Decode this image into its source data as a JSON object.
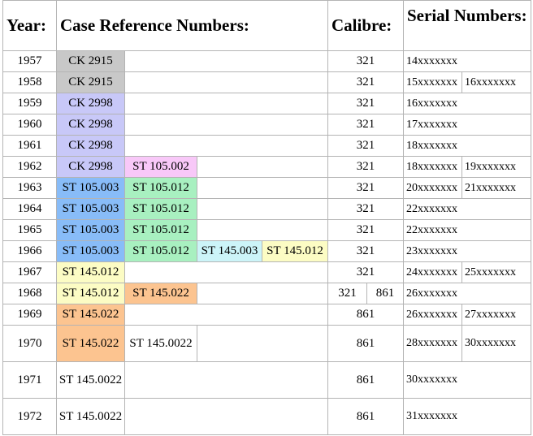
{
  "headers": {
    "year": "Year:",
    "case": "Case Reference Numbers:",
    "calibre": "Calibre:",
    "serial": "Serial Numbers:"
  },
  "rows": [
    {
      "year": "1957",
      "cases": [
        {
          "text": "CK 2915",
          "color": "#c8c8c8"
        }
      ],
      "calibre": [
        "321"
      ],
      "serials": [
        "14xxxxxxx"
      ]
    },
    {
      "year": "1958",
      "cases": [
        {
          "text": "CK 2915",
          "color": "#c8c8c8"
        }
      ],
      "calibre": [
        "321"
      ],
      "serials": [
        "15xxxxxxx",
        "16xxxxxxx"
      ]
    },
    {
      "year": "1959",
      "cases": [
        {
          "text": "CK 2998",
          "color": "#c8c8f8"
        }
      ],
      "calibre": [
        "321"
      ],
      "serials": [
        "16xxxxxxx"
      ]
    },
    {
      "year": "1960",
      "cases": [
        {
          "text": "CK 2998",
          "color": "#c8c8f8"
        }
      ],
      "calibre": [
        "321"
      ],
      "serials": [
        "17xxxxxxx"
      ]
    },
    {
      "year": "1961",
      "cases": [
        {
          "text": "CK 2998",
          "color": "#c8c8f8"
        }
      ],
      "calibre": [
        "321"
      ],
      "serials": [
        "18xxxxxxx"
      ]
    },
    {
      "year": "1962",
      "cases": [
        {
          "text": "CK 2998",
          "color": "#c8c8f8"
        },
        {
          "text": "ST 105.002",
          "color": "#f8c8f8"
        }
      ],
      "calibre": [
        "321"
      ],
      "serials": [
        "18xxxxxxx",
        "19xxxxxxx"
      ]
    },
    {
      "year": "1963",
      "cases": [
        {
          "text": "ST 105.003",
          "color": "#88bcf8"
        },
        {
          "text": "ST 105.012",
          "color": "#a8f0c0"
        }
      ],
      "calibre": [
        "321"
      ],
      "serials": [
        "20xxxxxxx",
        "21xxxxxxx"
      ]
    },
    {
      "year": "1964",
      "cases": [
        {
          "text": "ST 105.003",
          "color": "#88bcf8"
        },
        {
          "text": "ST 105.012",
          "color": "#a8f0c0"
        }
      ],
      "calibre": [
        "321"
      ],
      "serials": [
        "22xxxxxxx"
      ]
    },
    {
      "year": "1965",
      "cases": [
        {
          "text": "ST 105.003",
          "color": "#88bcf8"
        },
        {
          "text": "ST 105.012",
          "color": "#a8f0c0"
        }
      ],
      "calibre": [
        "321"
      ],
      "serials": [
        "22xxxxxxx"
      ]
    },
    {
      "year": "1966",
      "cases": [
        {
          "text": "ST 105.003",
          "color": "#88bcf8"
        },
        {
          "text": "ST 105.012",
          "color": "#a8f0c0"
        },
        {
          "text": "ST 145.003",
          "color": "#ccf4f8"
        },
        {
          "text": "ST 145.012",
          "color": "#fcfcc4"
        }
      ],
      "calibre": [
        "321"
      ],
      "serials": [
        "23xxxxxxx"
      ]
    },
    {
      "year": "1967",
      "cases": [
        {
          "text": "ST 145.012",
          "color": "#fcfcc4"
        }
      ],
      "calibre": [
        "321"
      ],
      "serials": [
        "24xxxxxxx",
        "25xxxxxxx"
      ]
    },
    {
      "year": "1968",
      "cases": [
        {
          "text": "ST 145.012",
          "color": "#fcfcc4"
        },
        {
          "text": "ST 145.022",
          "color": "#fcc490"
        }
      ],
      "calibre": [
        "321",
        "861"
      ],
      "serials": [
        "26xxxxxxx"
      ]
    },
    {
      "year": "1969",
      "cases": [
        {
          "text": "ST 145.022",
          "color": "#fcc490"
        }
      ],
      "calibre": [
        "861"
      ],
      "serials": [
        "26xxxxxxx",
        "27xxxxxxx"
      ]
    },
    {
      "year": "1970",
      "cases": [
        {
          "text": "ST 145.022",
          "color": "#fcc490"
        },
        {
          "text": "ST 145.0022",
          "color": "#ffffff"
        }
      ],
      "calibre": [
        "861"
      ],
      "serials": [
        "28xxxxxxx",
        "30xxxxxxx"
      ]
    },
    {
      "year": "1971",
      "cases": [
        {
          "text": "ST 145.0022",
          "color": "#ffffff"
        }
      ],
      "calibre": [
        "861"
      ],
      "serials": [
        "30xxxxxxx"
      ]
    },
    {
      "year": "1972",
      "cases": [
        {
          "text": "ST 145.0022",
          "color": "#ffffff"
        }
      ],
      "calibre": [
        "861"
      ],
      "serials": [
        "31xxxxxxx"
      ]
    }
  ]
}
